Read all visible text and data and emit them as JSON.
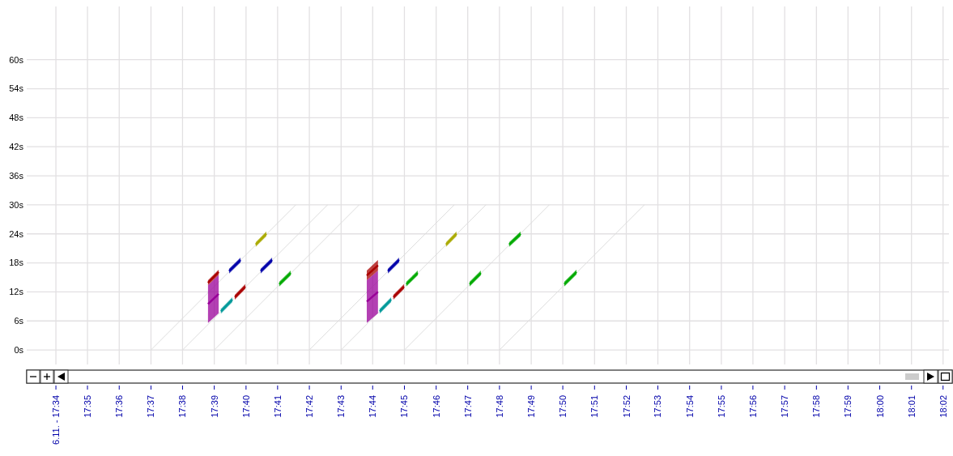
{
  "chart_data": {
    "type": "line",
    "grid": true,
    "xlim": [
      17.5522,
      18.0364
    ],
    "ylim": [
      -3,
      71
    ],
    "xticks": [
      {
        "value": 17.5667,
        "label": "6.11. - 17:34"
      },
      {
        "value": 17.5833,
        "label": "17:35"
      },
      {
        "value": 17.6,
        "label": "17:36"
      },
      {
        "value": 17.6167,
        "label": "17:37"
      },
      {
        "value": 17.6333,
        "label": "17:38"
      },
      {
        "value": 17.65,
        "label": "17:39"
      },
      {
        "value": 17.6667,
        "label": "17:40"
      },
      {
        "value": 17.6833,
        "label": "17:41"
      },
      {
        "value": 17.7,
        "label": "17:42"
      },
      {
        "value": 17.7167,
        "label": "17:43"
      },
      {
        "value": 17.7333,
        "label": "17:44"
      },
      {
        "value": 17.75,
        "label": "17:45"
      },
      {
        "value": 17.7667,
        "label": "17:46"
      },
      {
        "value": 17.7833,
        "label": "17:47"
      },
      {
        "value": 17.8,
        "label": "17:48"
      },
      {
        "value": 17.8167,
        "label": "17:49"
      },
      {
        "value": 17.8333,
        "label": "17:50"
      },
      {
        "value": 17.85,
        "label": "17:51"
      },
      {
        "value": 17.8667,
        "label": "17:52"
      },
      {
        "value": 17.8833,
        "label": "17:53"
      },
      {
        "value": 17.9,
        "label": "17:54"
      },
      {
        "value": 17.9167,
        "label": "17:55"
      },
      {
        "value": 17.9333,
        "label": "17:56"
      },
      {
        "value": 17.95,
        "label": "17:57"
      },
      {
        "value": 17.9667,
        "label": "17:58"
      },
      {
        "value": 17.9833,
        "label": "17:59"
      },
      {
        "value": 18,
        "label": "18:00"
      },
      {
        "value": 18.0167,
        "label": "18:01"
      },
      {
        "value": 18.0333,
        "label": "18:02"
      }
    ],
    "yticks": [
      {
        "value": 0,
        "label": "0s"
      },
      {
        "value": 6,
        "label": "6s"
      },
      {
        "value": 12,
        "label": "12s"
      },
      {
        "value": 18,
        "label": "18s"
      },
      {
        "value": 24,
        "label": "24s"
      },
      {
        "value": 30,
        "label": "30s"
      },
      {
        "value": 36,
        "label": "36s"
      },
      {
        "value": 42,
        "label": "42s"
      },
      {
        "value": 48,
        "label": "48s"
      },
      {
        "value": 54,
        "label": "54s"
      },
      {
        "value": 60,
        "label": "60s"
      }
    ],
    "series": [
      {
        "color": "#dddddd",
        "x": [
          17.6167,
          17.6929
        ],
        "values": [
          0,
          30
        ]
      },
      {
        "color": "#dddddd",
        "x": [
          17.6333,
          17.7096
        ],
        "values": [
          0,
          30
        ]
      },
      {
        "color": "#dddddd",
        "x": [
          17.65,
          17.7262
        ],
        "values": [
          0,
          30
        ]
      },
      {
        "color": "#dddddd",
        "x": [
          17.7,
          17.7762
        ],
        "values": [
          0,
          30
        ]
      },
      {
        "color": "#dddddd",
        "x": [
          17.7167,
          17.7929
        ],
        "values": [
          0,
          30
        ]
      },
      {
        "color": "#dddddd",
        "x": [
          17.75,
          17.8262
        ],
        "values": [
          0,
          30
        ]
      },
      {
        "color": "#dddddd",
        "x": [
          17.8,
          17.8762
        ],
        "values": [
          0,
          30
        ]
      },
      {
        "color": "#990099",
        "x": [
          17.6467,
          17.6523
        ],
        "values": [
          9.5,
          11.6
        ],
        "lower": [
          5.6,
          7.6
        ],
        "upper": [
          13.4,
          15.5
        ]
      },
      {
        "color": "#aa0000",
        "x": [
          17.6467,
          17.6523
        ],
        "values": [
          13.9,
          16.1
        ],
        "lower": [
          13.4,
          15.5
        ],
        "upper": [
          14.4,
          16.6
        ]
      },
      {
        "color": "#aaaa00",
        "x": [
          17.6718,
          17.6774
        ],
        "values": [
          21.8,
          24.0
        ],
        "lower": [
          21.3,
          23.5
        ],
        "upper": [
          22.3,
          24.5
        ]
      },
      {
        "color": "#0000aa",
        "x": [
          17.6578,
          17.6638
        ],
        "values": [
          16.3,
          18.6
        ],
        "lower": [
          15.8,
          18.1
        ],
        "upper": [
          16.8,
          19.1
        ]
      },
      {
        "color": "#009999",
        "x": [
          17.6535,
          17.6595
        ],
        "values": [
          8.0,
          10.4
        ],
        "lower": [
          7.5,
          9.9
        ],
        "upper": [
          8.5,
          10.9
        ]
      },
      {
        "color": "#aa0000",
        "x": [
          17.6608,
          17.6663
        ],
        "values": [
          10.9,
          13.1
        ],
        "lower": [
          10.4,
          12.6
        ],
        "upper": [
          11.4,
          13.6
        ]
      },
      {
        "color": "#0000aa",
        "x": [
          17.6744,
          17.6804
        ],
        "values": [
          16.3,
          18.6
        ],
        "lower": [
          15.8,
          18.1
        ],
        "upper": [
          16.8,
          19.1
        ]
      },
      {
        "color": "#00aa00",
        "x": [
          17.6842,
          17.6902
        ],
        "values": [
          13.6,
          15.9
        ],
        "lower": [
          13.1,
          15.4
        ],
        "upper": [
          14.1,
          16.4
        ]
      },
      {
        "color": "#990099",
        "x": [
          17.7302,
          17.7361
        ],
        "values": [
          10.0,
          12.0
        ],
        "lower": [
          5.6,
          7.6
        ],
        "upper": [
          14.4,
          16.4
        ]
      },
      {
        "color": "#aa0000",
        "x": [
          17.7302,
          17.7361
        ],
        "values": [
          15.4,
          17.5
        ],
        "lower": [
          14.4,
          16.4
        ],
        "upper": [
          16.4,
          18.6
        ]
      },
      {
        "color": "#009999",
        "x": [
          17.737,
          17.743
        ],
        "values": [
          8.0,
          10.4
        ],
        "lower": [
          7.5,
          9.9
        ],
        "upper": [
          8.5,
          10.9
        ]
      },
      {
        "color": "#aa0000",
        "x": [
          17.7442,
          17.7498
        ],
        "values": [
          10.9,
          13.1
        ],
        "lower": [
          10.4,
          12.6
        ],
        "upper": [
          11.4,
          13.6
        ]
      },
      {
        "color": "#0000aa",
        "x": [
          17.7413,
          17.7472
        ],
        "values": [
          16.3,
          18.6
        ],
        "lower": [
          15.8,
          18.1
        ],
        "upper": [
          16.8,
          19.1
        ]
      },
      {
        "color": "#00aa00",
        "x": [
          17.751,
          17.757
        ],
        "values": [
          13.6,
          15.9
        ],
        "lower": [
          13.1,
          15.4
        ],
        "upper": [
          14.1,
          16.4
        ]
      },
      {
        "color": "#aaaa00",
        "x": [
          17.7719,
          17.7774
        ],
        "values": [
          21.8,
          24.0
        ],
        "lower": [
          21.3,
          23.5
        ],
        "upper": [
          22.3,
          24.5
        ]
      },
      {
        "color": "#00aa00",
        "x": [
          17.7843,
          17.7902
        ],
        "values": [
          13.6,
          15.9
        ],
        "lower": [
          13.1,
          15.4
        ],
        "upper": [
          14.1,
          16.4
        ]
      },
      {
        "color": "#00aa00",
        "x": [
          17.8051,
          17.8111
        ],
        "values": [
          21.8,
          24.0
        ],
        "lower": [
          21.3,
          23.5
        ],
        "upper": [
          22.3,
          24.5
        ]
      },
      {
        "color": "#00aa00",
        "x": [
          17.8341,
          17.8405
        ],
        "values": [
          13.6,
          16.1
        ],
        "lower": [
          13.1,
          15.6
        ],
        "upper": [
          14.1,
          16.6
        ]
      }
    ]
  }
}
